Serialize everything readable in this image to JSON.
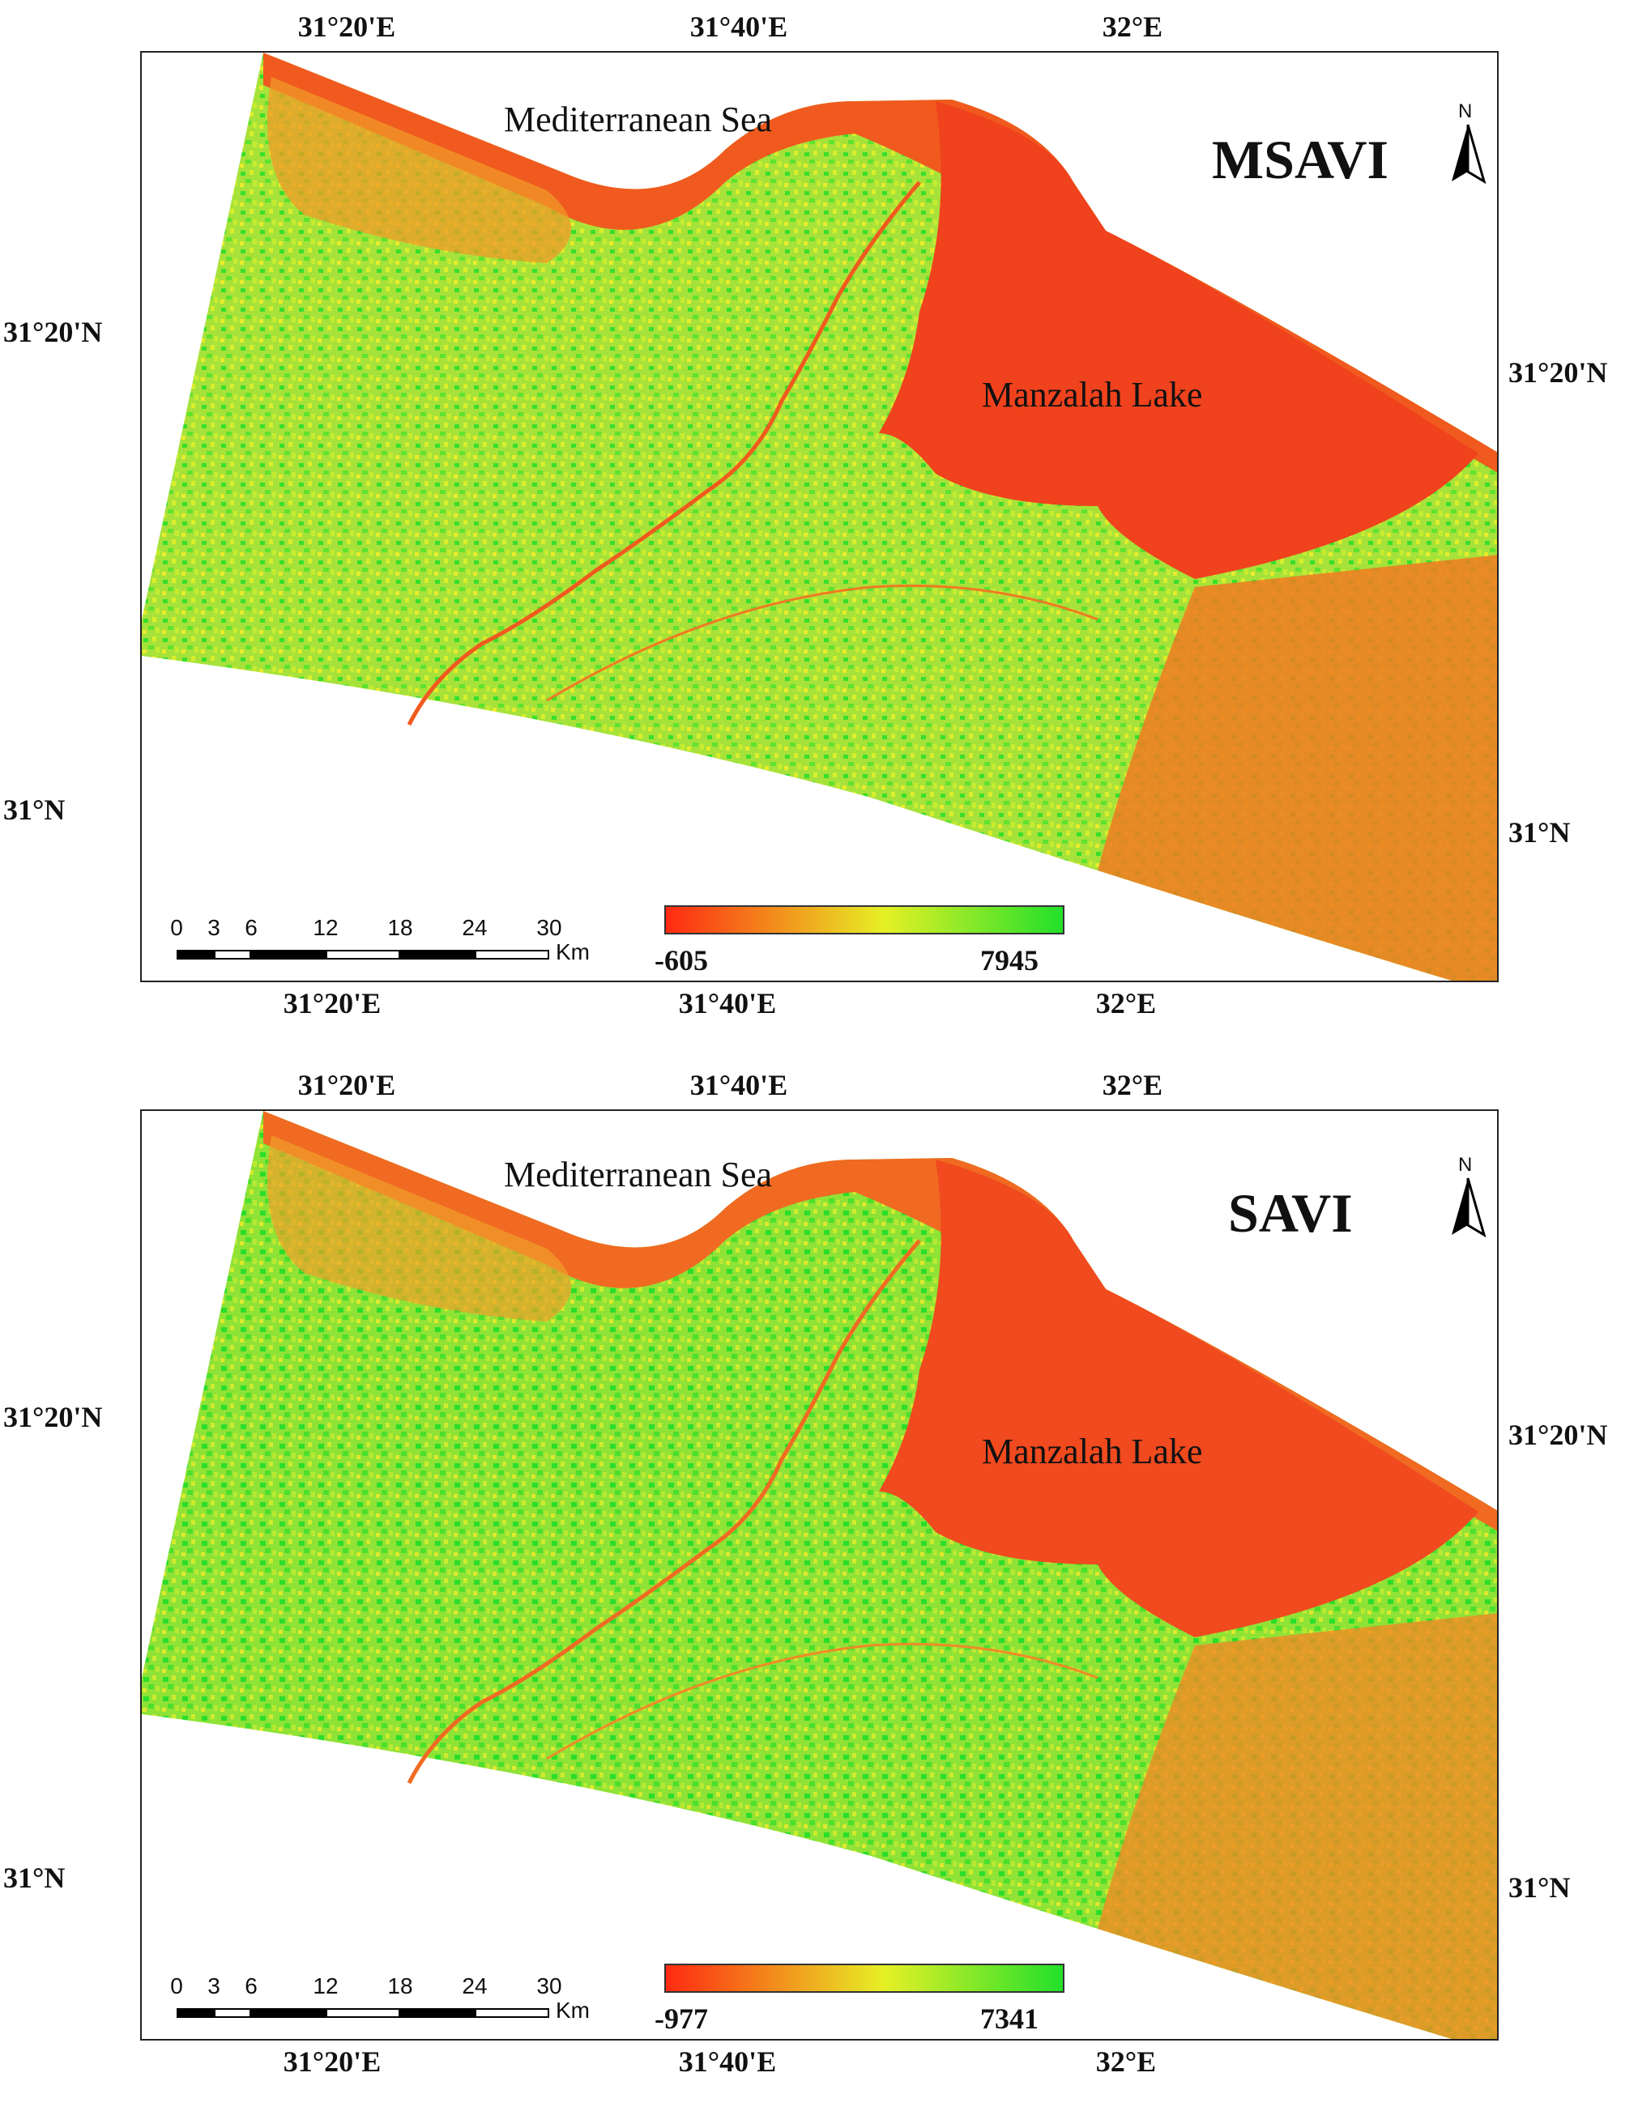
{
  "colors": {
    "low": "#ff2a12",
    "mid": "#e6f026",
    "high": "#22e02a",
    "land": "#9ee03a",
    "lake": "#f0421d",
    "urban": "#f07a22"
  },
  "panels": [
    {
      "id": "msavi",
      "title": "MSAVI",
      "north_label": "N",
      "sea_label": "Mediterranean Sea",
      "lake_label": "Manzalah Lake",
      "lon_labels_top": [
        "31°20'E",
        "31°40'E",
        "32°E"
      ],
      "lon_labels_bottom": [
        "31°20'E",
        "31°40'E",
        "32°E"
      ],
      "lat_labels_left": [
        "31°20'N",
        "31°N"
      ],
      "lat_labels_right": [
        "31°20'N",
        "31°N"
      ],
      "scale_ticks": [
        "0",
        "3",
        "6",
        "12",
        "18",
        "24",
        "30"
      ],
      "scale_unit": "Km",
      "legend": {
        "min": "-605",
        "max": "7945"
      }
    },
    {
      "id": "savi",
      "title": "SAVI",
      "north_label": "N",
      "sea_label": "Mediterranean Sea",
      "lake_label": "Manzalah Lake",
      "lon_labels_top": [
        "31°20'E",
        "31°40'E",
        "32°E"
      ],
      "lon_labels_bottom": [
        "31°20'E",
        "31°40'E",
        "32°E"
      ],
      "lat_labels_left": [
        "31°20'N",
        "31°N"
      ],
      "lat_labels_right": [
        "31°20'N",
        "31°N"
      ],
      "scale_ticks": [
        "0",
        "3",
        "6",
        "12",
        "18",
        "24",
        "30"
      ],
      "scale_unit": "Km",
      "legend": {
        "min": "-977",
        "max": "7341"
      }
    }
  ]
}
